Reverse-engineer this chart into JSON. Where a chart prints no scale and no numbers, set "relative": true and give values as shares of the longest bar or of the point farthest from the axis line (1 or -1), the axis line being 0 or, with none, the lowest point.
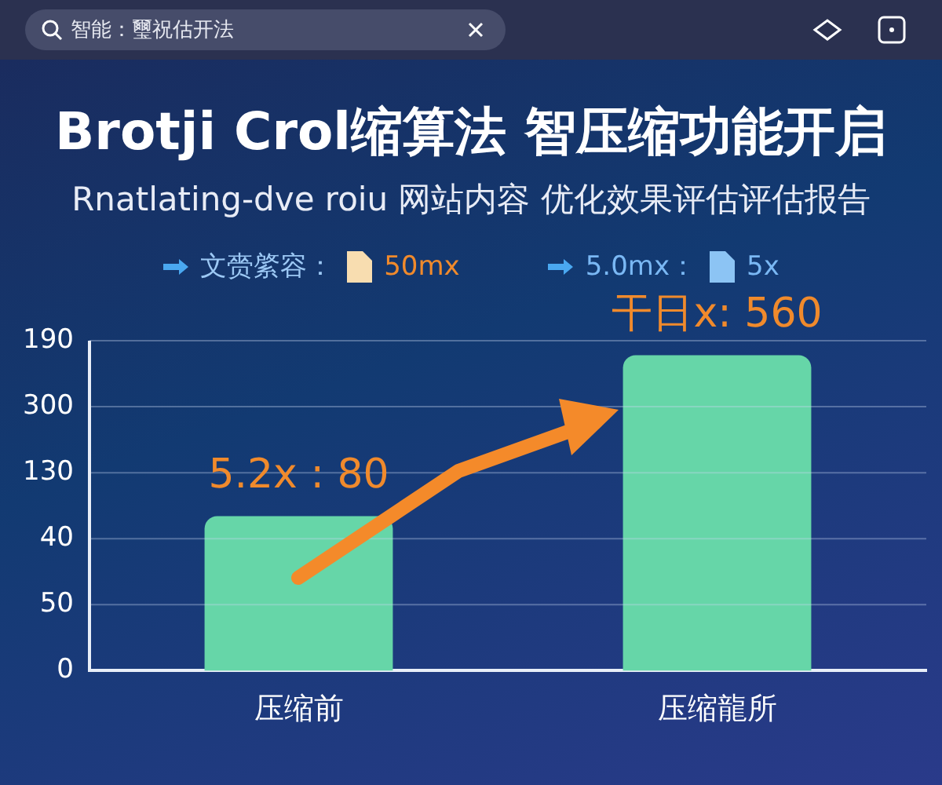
{
  "chart_data": {
    "type": "bar",
    "title": "Brotji Crol缩算法  智压缩功能开启",
    "subtitle": "Rnatlating-dve roiu 网站内容  优化效果评估评估报告",
    "annotations": [
      "智能：璽祝估开法",
      "文赍綮容：",
      "50mx",
      "5.0mx：",
      "5x",
      "0",
      "50",
      "40",
      "130",
      "300",
      "190",
      "5.2x : 80",
      "干日x: 560"
    ],
    "categories": [
      "压缩前",
      "压缩龍所"
    ],
    "values": [
      0.49,
      1
    ],
    "relative": true,
    "color": "#66d6a8",
    "grid": "y"
  }
}
